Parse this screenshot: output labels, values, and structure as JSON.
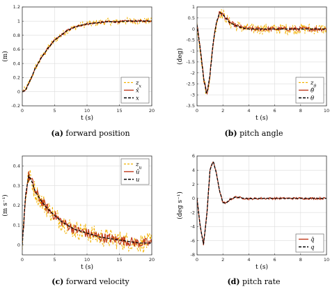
{
  "captions": [
    {
      "tag": "(a)",
      "text": " forward position"
    },
    {
      "tag": "(b)",
      "text": " pitch angle"
    },
    {
      "tag": "(c)",
      "text": " forward velocity"
    },
    {
      "tag": "(d)",
      "text": " pitch rate"
    }
  ],
  "colors": {
    "measurement": "#f2b200",
    "estimate": "#c0391b",
    "truth": "#000000"
  },
  "chart_data": [
    {
      "type": "line",
      "xlabel": "t (s)",
      "ylabel": "(m)",
      "xlim": [
        0,
        20
      ],
      "ylim": [
        -0.2,
        1.2
      ],
      "xticks": [
        0,
        5,
        10,
        15,
        20
      ],
      "yticks": [
        -0.2,
        0,
        0.2,
        0.4,
        0.6,
        0.8,
        1,
        1.2
      ],
      "ytick_labels": [
        "-0.2",
        "0",
        "0.2",
        "0.4",
        "0.6",
        "0.8",
        "1",
        "1.2"
      ],
      "grid": true,
      "legend_position": "lower-right",
      "legend": [
        "z_x",
        "x̂",
        "x"
      ],
      "x": [
        0,
        0.5,
        1,
        1.5,
        2,
        2.5,
        3,
        4,
        5,
        6,
        7,
        8,
        9,
        10,
        11,
        12,
        13,
        14,
        15,
        16,
        17,
        18,
        19,
        20
      ],
      "series": [
        {
          "name": "z_x",
          "style": "dashed",
          "values": [
            0.01,
            0.02,
            0.12,
            0.22,
            0.33,
            0.41,
            0.49,
            0.62,
            0.73,
            0.8,
            0.87,
            0.91,
            0.94,
            0.96,
            0.97,
            0.98,
            0.99,
            0.99,
            0.99,
            1.0,
            1.0,
            1.0,
            1.0,
            1.0
          ],
          "noise": 0.05
        },
        {
          "name": "x̂",
          "style": "solid",
          "values": [
            0.0,
            0.02,
            0.12,
            0.22,
            0.33,
            0.41,
            0.49,
            0.62,
            0.73,
            0.8,
            0.87,
            0.91,
            0.94,
            0.96,
            0.97,
            0.98,
            0.99,
            0.99,
            0.99,
            1.0,
            1.0,
            1.0,
            1.0,
            1.0
          ],
          "noise": 0.015
        },
        {
          "name": "x",
          "style": "dashed-black",
          "values": [
            0.0,
            0.02,
            0.12,
            0.22,
            0.33,
            0.41,
            0.49,
            0.62,
            0.73,
            0.8,
            0.87,
            0.91,
            0.94,
            0.96,
            0.97,
            0.98,
            0.99,
            0.99,
            0.99,
            1.0,
            1.0,
            1.0,
            1.0,
            1.0
          ],
          "noise": 0
        }
      ]
    },
    {
      "type": "line",
      "xlabel": "t (s)",
      "ylabel": "(deg)",
      "xlim": [
        0,
        10
      ],
      "ylim": [
        -3.5,
        1
      ],
      "xticks": [
        0,
        2,
        4,
        6,
        8,
        10
      ],
      "yticks": [
        -3.5,
        -3,
        -2.5,
        -2,
        -1.5,
        -1,
        -0.5,
        0,
        0.5,
        1
      ],
      "ytick_labels": [
        "-3.5",
        "-3",
        "-2.5",
        "-2",
        "-1.5",
        "-1",
        "-0.5",
        "0",
        "0.5",
        "1"
      ],
      "grid": true,
      "legend_position": "lower-right",
      "legend": [
        "z_θ",
        "θ̂",
        "θ"
      ],
      "x": [
        0,
        0.25,
        0.5,
        0.75,
        1,
        1.25,
        1.5,
        1.75,
        2,
        2.5,
        3,
        3.5,
        4,
        5,
        6,
        7,
        8,
        9,
        10
      ],
      "series": [
        {
          "name": "z_θ",
          "style": "dashed",
          "values": [
            0.2,
            -0.9,
            -2.2,
            -3.0,
            -2.1,
            -0.6,
            0.3,
            0.75,
            0.65,
            0.3,
            0.15,
            0.05,
            0.0,
            0.0,
            0.0,
            0.0,
            0.0,
            0.0,
            0.0
          ],
          "noise": 0.25
        },
        {
          "name": "θ̂",
          "style": "solid",
          "values": [
            0.2,
            -0.9,
            -2.2,
            -3.0,
            -2.1,
            -0.6,
            0.3,
            0.75,
            0.65,
            0.3,
            0.15,
            0.05,
            0.0,
            0.0,
            0.0,
            0.0,
            0.0,
            0.0,
            0.0
          ],
          "noise": 0.1
        },
        {
          "name": "θ",
          "style": "dashed-black",
          "values": [
            0.2,
            -0.9,
            -2.2,
            -3.0,
            -2.1,
            -0.6,
            0.3,
            0.75,
            0.65,
            0.3,
            0.15,
            0.05,
            0.0,
            0.0,
            0.0,
            0.0,
            0.0,
            0.0,
            0.0
          ],
          "noise": 0
        }
      ]
    },
    {
      "type": "line",
      "xlabel": "t (s)",
      "ylabel": "(m s⁻¹)",
      "xlim": [
        0,
        20
      ],
      "ylim": [
        -0.05,
        0.45
      ],
      "xticks": [
        0,
        5,
        10,
        15,
        20
      ],
      "yticks": [
        0,
        0.1,
        0.2,
        0.3,
        0.4
      ],
      "ytick_labels": [
        "0",
        "0.1",
        "0.2",
        "0.3",
        "0.4"
      ],
      "grid": true,
      "legend_position": "top-right",
      "legend": [
        "z_u",
        "û",
        "u"
      ],
      "x": [
        0,
        0.5,
        1,
        1.5,
        2,
        3,
        4,
        5,
        6,
        7,
        8,
        10,
        12,
        14,
        16,
        18,
        20
      ],
      "series": [
        {
          "name": "z_u",
          "style": "dashed",
          "values": [
            0.0,
            0.25,
            0.35,
            0.32,
            0.27,
            0.22,
            0.18,
            0.15,
            0.12,
            0.1,
            0.08,
            0.06,
            0.04,
            0.03,
            0.02,
            0.01,
            0.01
          ],
          "noise": 0.05
        },
        {
          "name": "û",
          "style": "solid",
          "values": [
            0.0,
            0.25,
            0.35,
            0.32,
            0.27,
            0.22,
            0.18,
            0.15,
            0.12,
            0.1,
            0.08,
            0.06,
            0.04,
            0.03,
            0.02,
            0.01,
            0.01
          ],
          "noise": 0.025
        },
        {
          "name": "u",
          "style": "dashed-black",
          "values": [
            0.0,
            0.25,
            0.35,
            0.32,
            0.27,
            0.22,
            0.18,
            0.15,
            0.12,
            0.1,
            0.08,
            0.06,
            0.04,
            0.03,
            0.02,
            0.01,
            0.01
          ],
          "noise": 0
        }
      ]
    },
    {
      "type": "line",
      "xlabel": "t (s)",
      "ylabel": "(deg s⁻¹)",
      "xlim": [
        0,
        10
      ],
      "ylim": [
        -8,
        6
      ],
      "xticks": [
        0,
        2,
        4,
        6,
        8,
        10
      ],
      "yticks": [
        -8,
        -6,
        -4,
        -2,
        0,
        2,
        4,
        6
      ],
      "ytick_labels": [
        "-8",
        "-6",
        "-4",
        "-2",
        "0",
        "2",
        "4",
        "6"
      ],
      "grid": true,
      "legend_position": "lower-right",
      "legend": [
        "q̂",
        "q"
      ],
      "x": [
        0,
        0.25,
        0.5,
        0.75,
        1,
        1.25,
        1.5,
        1.75,
        2,
        2.25,
        2.5,
        3,
        3.5,
        4,
        5,
        6,
        7,
        8,
        9,
        10
      ],
      "series": [
        {
          "name": "q̂",
          "style": "solid",
          "values": [
            0,
            -4,
            -6.5,
            -2.5,
            4,
            5.3,
            3.5,
            1,
            -0.6,
            -0.7,
            -0.2,
            0.2,
            0.05,
            -0.05,
            0.0,
            0.0,
            0.0,
            0.0,
            0.0,
            0.0
          ],
          "noise": 0.15
        },
        {
          "name": "q",
          "style": "dashed-black",
          "values": [
            0,
            -4,
            -6.5,
            -2.5,
            4,
            5.3,
            3.5,
            1,
            -0.6,
            -0.7,
            -0.2,
            0.2,
            0.05,
            -0.05,
            0.0,
            0.0,
            0.0,
            0.0,
            0.0,
            0.0
          ],
          "noise": 0
        }
      ]
    }
  ]
}
